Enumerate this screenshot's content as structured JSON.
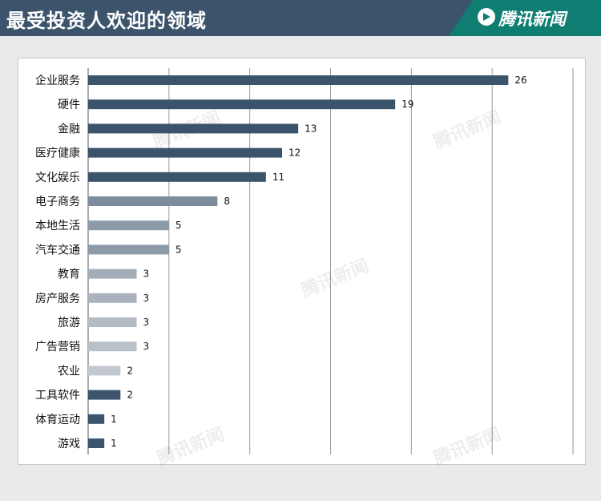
{
  "header": {
    "title": "最受投资人欢迎的领域",
    "logo_text": "腾讯新闻",
    "logo_icon": "play-icon",
    "colors": {
      "title_bg": "#3b546c",
      "logo_bg": "#0f7d72"
    }
  },
  "watermark": {
    "text": "腾讯新闻"
  },
  "chart_data": {
    "type": "bar",
    "orientation": "horizontal",
    "categories": [
      "企业服务",
      "硬件",
      "金融",
      "医疗健康",
      "文化娱乐",
      "电子商务",
      "本地生活",
      "汽车交通",
      "教育",
      "房产服务",
      "旅游",
      "广告营销",
      "农业",
      "工具软件",
      "体育运动",
      "游戏"
    ],
    "values": [
      26,
      19,
      13,
      12,
      11,
      8,
      5,
      5,
      3,
      3,
      3,
      3,
      2,
      2,
      1,
      1
    ],
    "colors": [
      "#3b546c",
      "#3b546c",
      "#3b546c",
      "#3b546c",
      "#3b546c",
      "#7d8c9c",
      "#8d9aa8",
      "#8d9aa8",
      "#a3adb8",
      "#a9b2bd",
      "#b3bbc5",
      "#b9c0c9",
      "#c3c8d0",
      "#3b546c",
      "#3b546c",
      "#3b546c"
    ],
    "title": "",
    "xlabel": "",
    "ylabel": "",
    "xlim": [
      0,
      30
    ],
    "grid": true,
    "legend": false
  }
}
